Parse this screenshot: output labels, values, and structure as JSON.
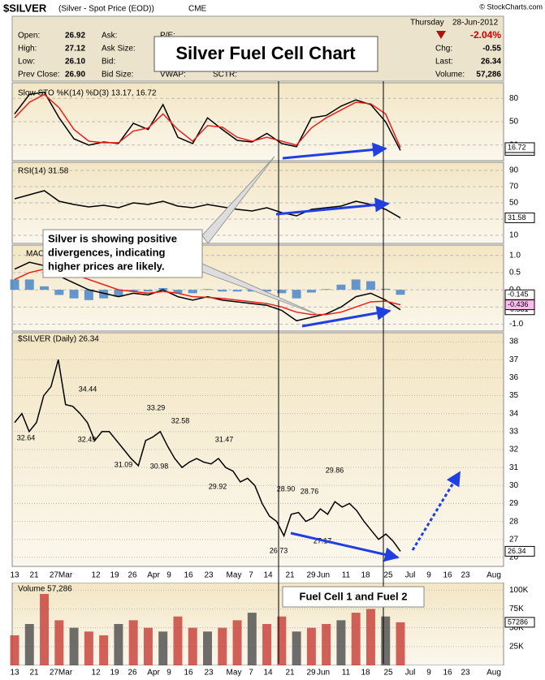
{
  "header": {
    "symbol": "$SILVER",
    "description": "(Silver - Spot Price (EOD))",
    "exchange": "CME",
    "copyright": "© StockCharts.com",
    "day": "Thursday",
    "date": "28-Jun-2012",
    "change_pct": "-2.04%",
    "open_label": "Open:",
    "open": "26.92",
    "high_label": "High:",
    "high": "27.12",
    "low_label": "Low:",
    "low": "26.10",
    "prev_label": "Prev Close:",
    "prev": "26.90",
    "ask": "Ask:",
    "ask_size": "Ask Size:",
    "bid": "Bid:",
    "bid_size": "Bid Size:",
    "pe": "P/E:",
    "vwap": "VWAP:",
    "sctr": "SCTR:",
    "chg_label": "Chg:",
    "chg": "-0.55",
    "last_label": "Last:",
    "last": "26.34",
    "volume_label": "Volume:",
    "volume": "57,286"
  },
  "title_box": "Silver Fuel Cell Chart",
  "callout": [
    "Silver is showing positive",
    "divergences, indicating",
    "higher prices are likely."
  ],
  "fuel_callout": "Fuel Cell 1 and Fuel 2",
  "date_axis": [
    "13",
    "21",
    "27Mar",
    "12",
    "19",
    "26",
    "Apr",
    "9",
    "16",
    "23",
    "May",
    "7",
    "14",
    "21",
    "29",
    "Jun",
    "11",
    "18",
    "25",
    "Jul",
    "9",
    "16",
    "23",
    "Aug"
  ],
  "chart_data": [
    {
      "type": "line",
      "label": "Slow STO %K(14) %D(3) 13.17, 16.72",
      "ylim": [
        0,
        100
      ],
      "yticks": [
        20,
        50,
        80
      ],
      "series": [
        {
          "name": "%K",
          "color": "#000000",
          "values": [
            60,
            85,
            88,
            55,
            28,
            20,
            24,
            22,
            48,
            40,
            72,
            30,
            22,
            55,
            40,
            26,
            24,
            35,
            22,
            18,
            55,
            58,
            70,
            78,
            72,
            50,
            13.17
          ]
        },
        {
          "name": "%D",
          "color": "#e8201c",
          "values": [
            55,
            75,
            85,
            68,
            40,
            25,
            23,
            23,
            38,
            42,
            60,
            40,
            25,
            45,
            43,
            30,
            25,
            30,
            25,
            20,
            42,
            55,
            65,
            75,
            73,
            60,
            16.72
          ]
        }
      ]
    },
    {
      "type": "line",
      "label": "RSI(14) 31.58",
      "ylim": [
        0,
        100
      ],
      "yticks": [
        10,
        30,
        50,
        70,
        90
      ],
      "series": [
        {
          "name": "RSI",
          "color": "#000000",
          "values": [
            55,
            60,
            65,
            52,
            48,
            45,
            47,
            44,
            50,
            48,
            52,
            46,
            44,
            48,
            45,
            42,
            40,
            44,
            38,
            34,
            42,
            44,
            46,
            52,
            48,
            42,
            31.58
          ]
        }
      ]
    },
    {
      "type": "line",
      "label": "MAC",
      "ylim": [
        -1.2,
        1.3
      ],
      "yticks": [
        {
          "value": -1,
          "label": "-1.0"
        },
        -0.5,
        {
          "value": 0,
          "label": "0.0"
        },
        0.5,
        {
          "value": 1,
          "label": "1.0"
        }
      ],
      "series": [
        {
          "name": "Histogram",
          "type": "bar",
          "color": "#4a86c8",
          "values": [
            0.3,
            0.3,
            0.1,
            -0.15,
            -0.25,
            -0.3,
            -0.25,
            -0.2,
            -0.05,
            -0.05,
            0.05,
            -0.1,
            -0.1,
            0.02,
            -0.05,
            -0.05,
            -0.05,
            -0.05,
            -0.1,
            -0.25,
            -0.08,
            0.02,
            0.15,
            0.3,
            0.25,
            0.03,
            -0.145
          ]
        },
        {
          "name": "MACD",
          "color": "#000000",
          "values": [
            0.6,
            0.8,
            0.7,
            0.4,
            0.2,
            0,
            -0.1,
            -0.2,
            -0.1,
            -0.15,
            0,
            -0.2,
            -0.3,
            -0.2,
            -0.3,
            -0.35,
            -0.4,
            -0.45,
            -0.6,
            -0.9,
            -0.8,
            -0.7,
            -0.5,
            -0.2,
            -0.1,
            -0.3,
            -0.581
          ]
        },
        {
          "name": "Signal",
          "color": "#e8201c",
          "values": [
            0.3,
            0.5,
            0.6,
            0.55,
            0.45,
            0.3,
            0.15,
            0,
            -0.05,
            -0.1,
            -0.05,
            -0.1,
            -0.2,
            -0.22,
            -0.25,
            -0.3,
            -0.35,
            -0.4,
            -0.5,
            -0.65,
            -0.72,
            -0.72,
            -0.65,
            -0.5,
            -0.35,
            -0.33,
            -0.436
          ]
        }
      ]
    },
    {
      "type": "line",
      "label": "$SILVER (Daily) 26.34",
      "ylim": [
        25.5,
        38.5
      ],
      "yticks": [
        26,
        27,
        28,
        29,
        30,
        31,
        32,
        33,
        34,
        35,
        36,
        37,
        38
      ],
      "annotations": [
        "32.64",
        "34.44",
        "32.49",
        "31.09",
        "33.29",
        "30.98",
        "32.58",
        "29.92",
        "31.47",
        "28.90",
        "28.76",
        "29.86",
        "26.73",
        "27.17"
      ],
      "series": [
        {
          "name": "$SILVER",
          "color": "#000000",
          "values": [
            33.5,
            34,
            33,
            33.5,
            35,
            35.5,
            37,
            34.5,
            34.4,
            34,
            33.5,
            32.5,
            33,
            33,
            32.5,
            32,
            31.5,
            31.1,
            32.5,
            32.7,
            33,
            32.2,
            31.5,
            31,
            31.3,
            31.5,
            31.3,
            31.2,
            31.5,
            31,
            30.8,
            30.2,
            30.4,
            30,
            29,
            28.3,
            28,
            27.2,
            28.4,
            28.5,
            28,
            28.2,
            28.7,
            28.4,
            29.1,
            28.8,
            29,
            28.6,
            28,
            27.5,
            27,
            27.3,
            26.9,
            26.34
          ]
        }
      ]
    },
    {
      "type": "bar",
      "label": "Volume 57,286",
      "ylim": [
        0,
        110000
      ],
      "yticks": [
        {
          "value": 25000,
          "label": "25K"
        },
        {
          "value": 50000,
          "label": "50K"
        },
        {
          "value": 75000,
          "label": "75K"
        },
        {
          "value": 100000,
          "label": "100K"
        }
      ],
      "series": [
        {
          "name": "Volume",
          "color": "#c9453f",
          "values": [
            40000,
            55000,
            95000,
            60000,
            50000,
            45000,
            40000,
            55000,
            60000,
            50000,
            45000,
            65000,
            50000,
            45000,
            50000,
            60000,
            70000,
            55000,
            65000,
            45000,
            50000,
            55000,
            60000,
            70000,
            75000,
            65000,
            57286
          ]
        }
      ]
    }
  ]
}
